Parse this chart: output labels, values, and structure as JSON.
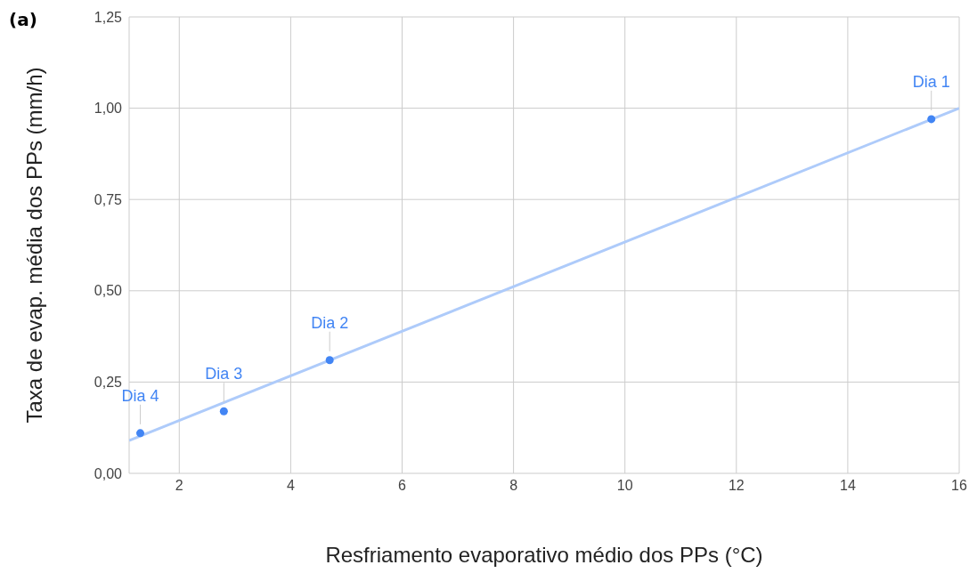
{
  "chart_data": {
    "type": "scatter",
    "xlabel": "Resfriamento evaporativo médio dos PPs (°C)",
    "ylabel": "Taxa de evap. média dos PPs (mm/h)",
    "x": [
      15.5,
      4.7,
      2.8,
      1.3
    ],
    "series": [
      {
        "color": "#4285f4",
        "values": [
          0.97,
          0.31,
          0.17,
          0.11
        ],
        "marker": "circle"
      },
      {
        "type": "line",
        "color": "#aecbfa",
        "x": [
          1.1,
          16
        ],
        "values": [
          0.09,
          1.0
        ],
        "marker": "none"
      }
    ],
    "xlim": [
      1.1,
      16
    ],
    "xticks": [
      2,
      4,
      6,
      8,
      10,
      12,
      14,
      16
    ],
    "ylim": [
      0,
      1.25
    ],
    "yticks": [
      {
        "value": 0,
        "label": "0,00"
      },
      {
        "value": 0.25,
        "label": "0,25"
      },
      {
        "value": 0.5,
        "label": "0,50"
      },
      {
        "value": 0.75,
        "label": "0,75"
      },
      {
        "value": 1,
        "label": "1,00"
      },
      {
        "value": 1.25,
        "label": "1,25"
      }
    ],
    "grid": true,
    "annotations": [
      "(a)",
      {
        "text": "Dia 1",
        "x": 15.5,
        "y": 0.97
      },
      {
        "text": "Dia 2",
        "x": 4.7,
        "y": 0.31
      },
      {
        "text": "Dia 3",
        "x": 2.8,
        "y": 0.17
      },
      {
        "text": "Dia 4",
        "x": 1.3,
        "y": 0.11
      }
    ]
  }
}
